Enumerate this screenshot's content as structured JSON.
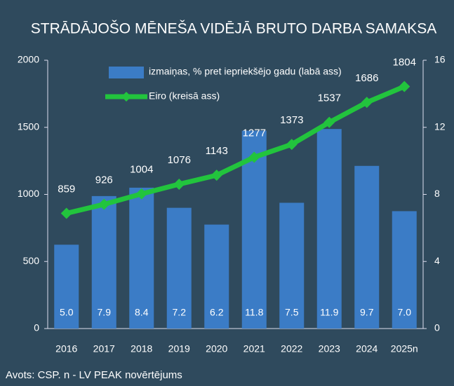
{
  "chart_data": {
    "type": "bar-line",
    "title": "STRĀDĀJOŠO MĒNEŠA VIDĒJĀ BRUTO DARBA SAMAKSA",
    "source": "Avots: CSP. n - LV PEAK novērtējums",
    "categories": [
      "2016",
      "2017",
      "2018",
      "2019",
      "2020",
      "2021",
      "2022",
      "2023",
      "2024",
      "2025n"
    ],
    "series": [
      {
        "name": "izmaiņas, % pret iepriekšējo gadu (labā ass)",
        "type": "bar",
        "axis": "y2",
        "color": "#3b7cc6",
        "values": [
          5.0,
          7.9,
          8.4,
          7.2,
          6.2,
          11.8,
          7.5,
          11.9,
          9.7,
          7.0
        ],
        "value_labels": [
          "5.0",
          "7.9",
          "8.4",
          "7.2",
          "6.2",
          "11.8",
          "7.5",
          "11.9",
          "9.7",
          "7.0"
        ]
      },
      {
        "name": "Eiro (kreisā ass)",
        "type": "line",
        "color": "#22c43d",
        "values": [
          859,
          926,
          1004,
          1076,
          1143,
          1277,
          1373,
          1537,
          1686,
          1804
        ]
      }
    ],
    "ylim": [
      0,
      2000
    ],
    "yticks": [
      0,
      500,
      1000,
      1500,
      2000
    ],
    "y2lim": [
      0,
      16
    ],
    "y2ticks": [
      0,
      4,
      8,
      12,
      16
    ]
  }
}
